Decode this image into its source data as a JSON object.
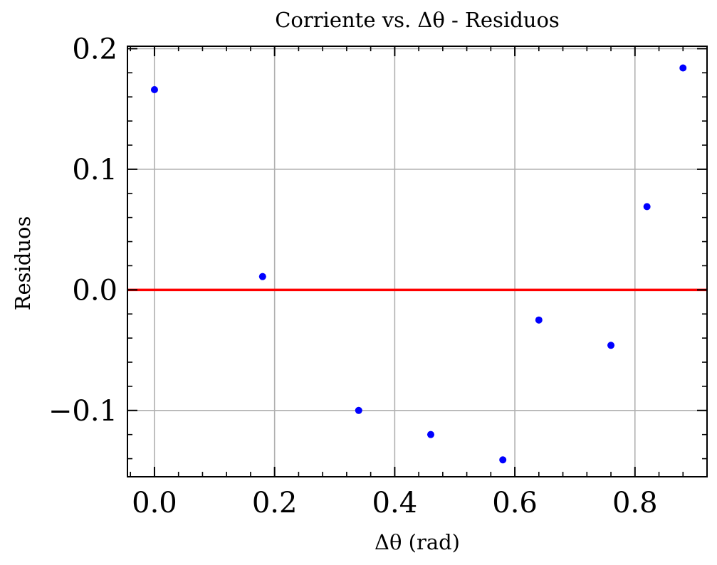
{
  "chart_data": {
    "type": "scatter",
    "title": "Corriente vs. Δθ - Residuos",
    "xlabel": "Δθ (rad)",
    "ylabel": "Residuos",
    "xlim": [
      -0.045,
      0.92
    ],
    "ylim": [
      -0.155,
      0.202
    ],
    "xticks": [
      0.0,
      0.2,
      0.4,
      0.6,
      0.8
    ],
    "xtick_labels": [
      "0.0",
      "0.2",
      "0.4",
      "0.6",
      "0.8"
    ],
    "yticks": [
      -0.1,
      0.0,
      0.1,
      0.2
    ],
    "ytick_labels": [
      "−0.1",
      "0.0",
      "0.1",
      "0.2"
    ],
    "grid": true,
    "point_color": "#0000ff",
    "reference_line": {
      "y": 0.0,
      "color": "#ff0000"
    },
    "series": [
      {
        "x": [
          0.0,
          0.18,
          0.34,
          0.46,
          0.58,
          0.64,
          0.76,
          0.82,
          0.88
        ],
        "y": [
          0.166,
          0.011,
          -0.1,
          -0.12,
          -0.141,
          -0.025,
          -0.046,
          0.069,
          0.184
        ]
      }
    ]
  }
}
